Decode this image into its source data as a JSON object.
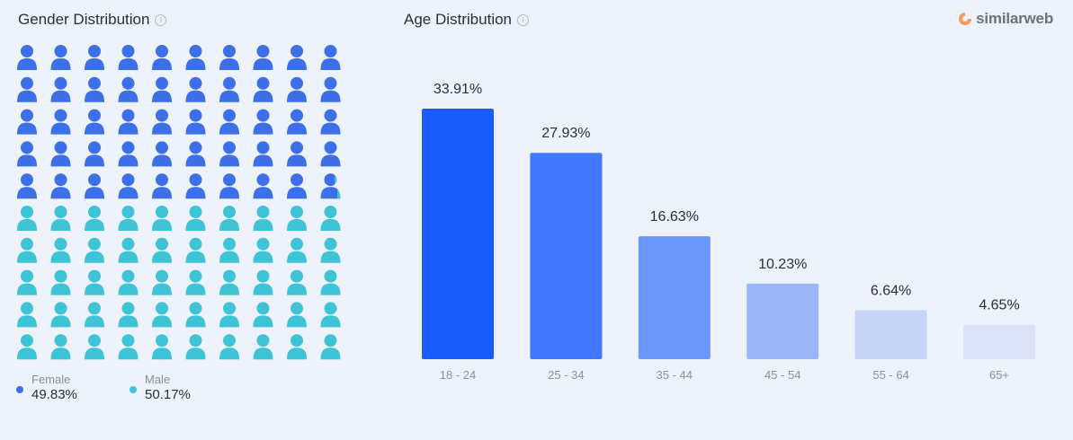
{
  "gender": {
    "title": "Gender Distribution",
    "female_label": "Female",
    "female_value": "49.83%",
    "male_label": "Male",
    "male_value": "50.17%",
    "female_color": "#3d6fe8",
    "male_color": "#3ec4d6",
    "icon_name": "person-icon"
  },
  "age": {
    "title": "Age Distribution"
  },
  "brand": {
    "name": "similarweb",
    "mark_color": "#f29b63"
  },
  "chart_data": [
    {
      "type": "pictograph",
      "title": "Gender Distribution",
      "series": [
        {
          "name": "Female",
          "value": 49.83
        },
        {
          "name": "Male",
          "value": 50.17
        }
      ],
      "icons_total": 100
    },
    {
      "type": "bar",
      "title": "Age Distribution",
      "categories": [
        "18 - 24",
        "25 - 34",
        "35 - 44",
        "45 - 54",
        "55 - 64",
        "65+"
      ],
      "values": [
        33.91,
        27.93,
        16.63,
        10.23,
        6.64,
        4.65
      ],
      "labels": [
        "33.91%",
        "27.93%",
        "16.63%",
        "10.23%",
        "6.64%",
        "4.65%"
      ],
      "colors": [
        "#1a5cff",
        "#4278fd",
        "#6d96fb",
        "#9bb6f8",
        "#c7d4f7",
        "#dde3f7"
      ],
      "xlabel": "",
      "ylabel": "",
      "ylim": [
        0,
        33.91
      ],
      "grid": false,
      "legend": "none"
    }
  ]
}
